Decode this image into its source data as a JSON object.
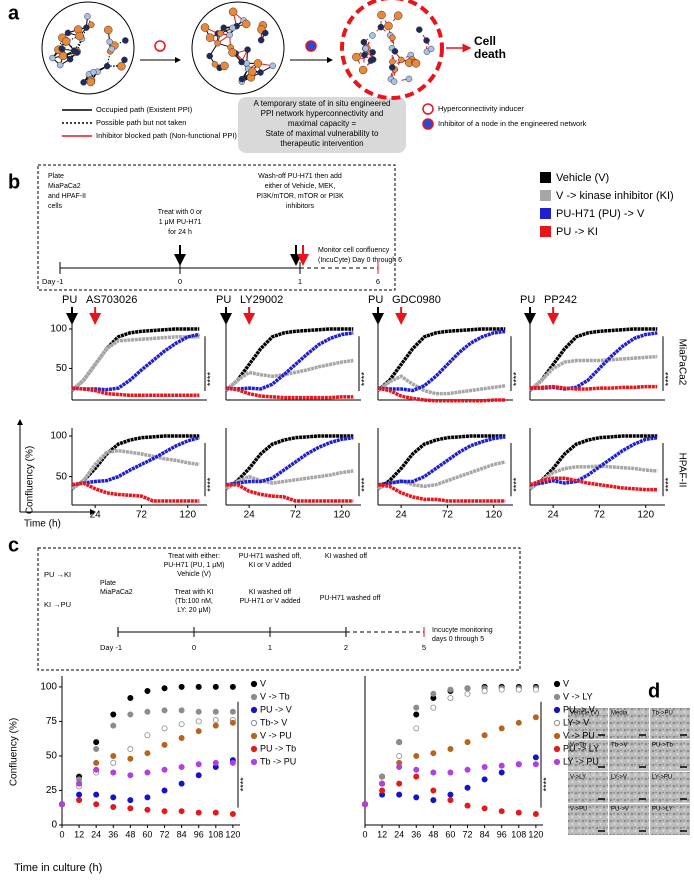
{
  "panel_labels": [
    "a",
    "b",
    "c",
    "d"
  ],
  "panel_a": {
    "legend": [
      "Occupied path (Existent PPI)",
      "Possible path but not taken",
      "Inhibitor blocked path (Non-functional PPI)"
    ],
    "box_text": [
      "A temporary state of in situ engineered",
      "PPI network hyperconnectivity  and",
      "maximal  capacity  =",
      "State of maximal vulnerability to",
      "therapeutic intervention"
    ],
    "cell_death": [
      "Cell",
      "death"
    ],
    "markers": [
      "Hyperconnectivity inducer",
      "Inhibitor of a node in the engineered network"
    ]
  },
  "panel_b": {
    "timeline": {
      "day_label": "Day",
      "days": [
        "-1",
        "0",
        "1",
        "6"
      ],
      "steps": [
        [
          "Plate",
          "MiaPaCa2",
          "and HPAF-II",
          "cells"
        ],
        [
          "Treat with 0 or",
          "1 μM PU-H71",
          "for 24 h"
        ],
        [
          "Wash-off PU-H71 then add",
          "either of Vehicle, MEK,",
          "PI3K/mTOR, mTOR or PI3K",
          "inhibitors"
        ],
        [
          "Monitor cell confluency",
          "(IncuCyte) Day 0 through 6"
        ]
      ]
    },
    "legend": [
      {
        "name": "Vehicle (V)",
        "color": "#000000"
      },
      {
        "name": "V -> kinase inhibitor (KI)",
        "color": "#a6a6a6"
      },
      {
        "name": "PU-H71 (PU) -> V",
        "color": "#1f1fd0"
      },
      {
        "name": "PU -> KI",
        "color": "#e8141b"
      }
    ],
    "row_labels": [
      "MiaPaCa2",
      "HPAF-II"
    ],
    "arrow_label": "PU",
    "y_axis_label": "Confluency (%)",
    "x_axis_label": "Time (h)"
  },
  "panel_c": {
    "timeline": {
      "day_label": "Day -1",
      "days": [
        "0",
        "1",
        "2",
        "5"
      ],
      "arms": [
        "PU →KI",
        "KI →PU"
      ],
      "steps": [
        [
          "Plate",
          "MiaPaCa2"
        ],
        [
          "Treat with either:",
          "PU-H71 (PU, 1 μM)",
          "Vehicle (V)"
        ],
        [
          "Treat with KI",
          "(Tb:100 nM,",
          "LY: 20 μM)"
        ],
        [
          "PU-H71 washed off,",
          "KI or V added"
        ],
        [
          "KI washed off",
          "PU-H71 or V added"
        ],
        [
          "KI washed off"
        ],
        [
          "PU-H71 washed off"
        ],
        [
          "Incucyte monitoring",
          "days 0 through 5"
        ]
      ]
    },
    "y_axis_label": "Confluency (%)",
    "x_axis_label": "Time in culture (h)"
  },
  "panel_d": {
    "labels": [
      "Vehicle (V)",
      "Media",
      "Tb->PU",
      "V->Tb",
      "Tb->V",
      "PU->Tb",
      "V->LY",
      "LY->V",
      "LY->PU",
      "V->PU",
      "PU->V",
      "PU->LY"
    ]
  },
  "chart_data": [
    {
      "type": "line",
      "title": "AS703026",
      "annotation": "****",
      "x": [
        0,
        12,
        24,
        36,
        48,
        60,
        72,
        84,
        96,
        108,
        120,
        132
      ],
      "xlim": [
        0,
        140
      ],
      "ylim": [
        10,
        105
      ],
      "yticks": [
        50,
        100
      ],
      "series": [
        {
          "values": [
            22,
            35,
            55,
            75,
            90,
            95,
            97,
            98,
            99,
            100,
            100,
            100
          ]
        },
        {
          "values": [
            22,
            35,
            55,
            75,
            85,
            86,
            87,
            88,
            89,
            90,
            90,
            90
          ]
        },
        {
          "values": [
            25,
            24,
            24,
            23,
            25,
            35,
            48,
            60,
            72,
            82,
            90,
            93
          ]
        },
        {
          "values": [
            25,
            24,
            22,
            18,
            17,
            16,
            16,
            16,
            16,
            16,
            16,
            16
          ]
        }
      ]
    },
    {
      "type": "line",
      "title": "LY29002",
      "annotation": "****",
      "x": [
        0,
        12,
        24,
        36,
        48,
        60,
        72,
        84,
        96,
        108,
        120,
        132
      ],
      "xlim": [
        0,
        140
      ],
      "ylim": [
        10,
        105
      ],
      "series": [
        {
          "values": [
            22,
            35,
            55,
            75,
            90,
            95,
            97,
            98,
            99,
            100,
            100,
            100
          ]
        },
        {
          "values": [
            22,
            35,
            45,
            42,
            40,
            42,
            45,
            48,
            52,
            55,
            58,
            60
          ]
        },
        {
          "values": [
            25,
            24,
            25,
            24,
            30,
            42,
            55,
            68,
            80,
            88,
            93,
            95
          ]
        },
        {
          "values": [
            25,
            23,
            18,
            15,
            14,
            13,
            13,
            13,
            13,
            13,
            14,
            14
          ]
        }
      ]
    },
    {
      "type": "line",
      "title": "GDC0980",
      "annotation": "****",
      "x": [
        0,
        12,
        24,
        36,
        48,
        60,
        72,
        84,
        96,
        108,
        120,
        132
      ],
      "xlim": [
        0,
        140
      ],
      "ylim": [
        10,
        105
      ],
      "series": [
        {
          "values": [
            22,
            35,
            55,
            75,
            90,
            95,
            97,
            98,
            99,
            100,
            100,
            100
          ]
        },
        {
          "values": [
            22,
            33,
            40,
            30,
            22,
            18,
            18,
            20,
            22,
            24,
            26,
            28
          ]
        },
        {
          "values": [
            25,
            24,
            24,
            22,
            28,
            40,
            55,
            70,
            82,
            90,
            95,
            97
          ]
        },
        {
          "values": [
            25,
            22,
            15,
            12,
            10,
            9,
            9,
            9,
            9,
            9,
            10,
            10
          ]
        }
      ]
    },
    {
      "type": "line",
      "title": "PP242",
      "annotation": "****",
      "x": [
        0,
        12,
        24,
        36,
        48,
        60,
        72,
        84,
        96,
        108,
        120,
        132
      ],
      "xlim": [
        0,
        140
      ],
      "ylim": [
        10,
        105
      ],
      "series": [
        {
          "values": [
            22,
            35,
            55,
            75,
            90,
            95,
            97,
            98,
            99,
            100,
            100,
            100
          ]
        },
        {
          "values": [
            22,
            35,
            50,
            58,
            60,
            60,
            60,
            61,
            62,
            63,
            64,
            65
          ]
        },
        {
          "values": [
            25,
            25,
            26,
            24,
            26,
            35,
            50,
            65,
            78,
            88,
            93,
            95
          ]
        },
        {
          "values": [
            25,
            26,
            27,
            25,
            24,
            24,
            25,
            25,
            26,
            26,
            27,
            27
          ]
        }
      ]
    },
    {
      "type": "line",
      "annotation": "****",
      "x": [
        0,
        12,
        24,
        36,
        48,
        60,
        72,
        84,
        96,
        108,
        120,
        132
      ],
      "xlim": [
        0,
        140
      ],
      "xticks": [
        24,
        72,
        120
      ],
      "ylim": [
        15,
        105
      ],
      "yticks": [
        50,
        100
      ],
      "series": [
        {
          "values": [
            35,
            45,
            60,
            78,
            90,
            95,
            98,
            99,
            100,
            100,
            100,
            100
          ]
        },
        {
          "values": [
            35,
            45,
            65,
            80,
            82,
            80,
            78,
            75,
            72,
            70,
            67,
            65
          ]
        },
        {
          "values": [
            40,
            42,
            44,
            45,
            50,
            58,
            65,
            72,
            80,
            88,
            94,
            98
          ]
        },
        {
          "values": [
            40,
            42,
            35,
            30,
            28,
            27,
            26,
            20,
            20,
            20,
            20,
            20
          ]
        }
      ]
    },
    {
      "type": "line",
      "annotation": "****",
      "x": [
        0,
        12,
        24,
        36,
        48,
        60,
        72,
        84,
        96,
        108,
        120,
        132
      ],
      "xlim": [
        0,
        140
      ],
      "xticks": [
        24,
        72,
        120
      ],
      "ylim": [
        15,
        105
      ],
      "series": [
        {
          "values": [
            35,
            45,
            60,
            78,
            90,
            95,
            98,
            99,
            100,
            100,
            100,
            100
          ]
        },
        {
          "values": [
            35,
            44,
            50,
            45,
            42,
            44,
            46,
            48,
            50,
            52,
            55,
            57
          ]
        },
        {
          "values": [
            40,
            42,
            44,
            44,
            48,
            58,
            68,
            78,
            86,
            92,
            96,
            98
          ]
        },
        {
          "values": [
            40,
            40,
            32,
            28,
            26,
            25,
            20,
            20,
            20,
            20,
            20,
            20
          ]
        }
      ]
    },
    {
      "type": "line",
      "annotation": "****",
      "x": [
        0,
        12,
        24,
        36,
        48,
        60,
        72,
        84,
        96,
        108,
        120,
        132
      ],
      "xlim": [
        0,
        140
      ],
      "xticks": [
        24,
        72,
        120
      ],
      "ylim": [
        15,
        105
      ],
      "series": [
        {
          "values": [
            35,
            45,
            60,
            78,
            90,
            95,
            98,
            99,
            100,
            100,
            100,
            100
          ]
        },
        {
          "values": [
            35,
            42,
            45,
            40,
            38,
            40,
            45,
            50,
            55,
            60,
            65,
            68
          ]
        },
        {
          "values": [
            40,
            42,
            44,
            44,
            50,
            60,
            70,
            80,
            88,
            93,
            97,
            99
          ]
        },
        {
          "values": [
            40,
            38,
            30,
            25,
            22,
            22,
            20,
            20,
            20,
            20,
            20,
            20
          ]
        }
      ]
    },
    {
      "type": "line",
      "annotation": "****",
      "x": [
        0,
        12,
        24,
        36,
        48,
        60,
        72,
        84,
        96,
        108,
        120,
        132
      ],
      "xlim": [
        0,
        140
      ],
      "xticks": [
        24,
        72,
        120
      ],
      "ylim": [
        15,
        105
      ],
      "series": [
        {
          "values": [
            35,
            45,
            60,
            78,
            90,
            95,
            98,
            99,
            100,
            100,
            100,
            100
          ]
        },
        {
          "values": [
            35,
            45,
            55,
            60,
            62,
            62,
            63,
            62,
            61,
            60,
            58,
            57
          ]
        },
        {
          "values": [
            40,
            42,
            45,
            42,
            44,
            52,
            62,
            72,
            82,
            90,
            96,
            98
          ]
        },
        {
          "values": [
            40,
            45,
            48,
            48,
            45,
            42,
            40,
            38,
            36,
            35,
            34,
            34
          ]
        }
      ]
    },
    {
      "type": "scatter",
      "annotation": "****",
      "x": [
        0,
        12,
        24,
        36,
        48,
        60,
        72,
        84,
        96,
        108,
        120
      ],
      "xlim": [
        0,
        125
      ],
      "xticks": [
        0,
        12,
        24,
        36,
        48,
        60,
        72,
        84,
        96,
        108,
        120
      ],
      "ylim": [
        0,
        105
      ],
      "yticks": [
        0,
        25,
        50,
        75,
        100
      ],
      "series": [
        {
          "name": "V",
          "color": "#000000",
          "values": [
            15,
            35,
            60,
            80,
            92,
            97,
            99,
            100,
            100,
            100,
            100
          ]
        },
        {
          "name": "V -> Tb",
          "color": "#8c8c8c",
          "values": [
            15,
            33,
            55,
            72,
            80,
            82,
            83,
            83,
            82,
            82,
            82
          ]
        },
        {
          "name": "PU -> V",
          "color": "#1515c8",
          "values": [
            15,
            22,
            22,
            20,
            18,
            20,
            25,
            30,
            36,
            42,
            47
          ]
        },
        {
          "name": "Tb-> V",
          "color": "#8c8c8c",
          "hollow": true,
          "values": [
            15,
            28,
            38,
            45,
            55,
            65,
            70,
            73,
            75,
            76,
            76
          ]
        },
        {
          "name": "V -> PU",
          "color": "#b5651d",
          "values": [
            15,
            30,
            45,
            50,
            48,
            52,
            58,
            63,
            68,
            72,
            74
          ]
        },
        {
          "name": "PU -> Tb",
          "color": "#e31a1c",
          "values": [
            15,
            18,
            15,
            13,
            12,
            11,
            10,
            10,
            9,
            9,
            8
          ]
        },
        {
          "name": "Tb -> PU",
          "color": "#b040e0",
          "values": [
            15,
            30,
            40,
            38,
            36,
            38,
            40,
            42,
            44,
            45,
            45
          ]
        }
      ]
    },
    {
      "type": "scatter",
      "annotation": "****",
      "x": [
        0,
        12,
        24,
        36,
        48,
        60,
        72,
        84,
        96,
        108,
        120
      ],
      "xlim": [
        0,
        125
      ],
      "xticks": [
        0,
        12,
        24,
        36,
        48,
        60,
        72,
        84,
        96,
        108,
        120
      ],
      "ylim": [
        0,
        105
      ],
      "series": [
        {
          "name": "V",
          "color": "#000000",
          "values": [
            15,
            35,
            60,
            80,
            92,
            97,
            99,
            100,
            100,
            100,
            100
          ]
        },
        {
          "name": "V -> LY",
          "color": "#8c8c8c",
          "values": [
            15,
            35,
            60,
            85,
            95,
            98,
            99,
            99,
            99,
            99,
            99
          ]
        },
        {
          "name": "PU -> V",
          "color": "#1515c8",
          "values": [
            15,
            22,
            22,
            20,
            18,
            22,
            27,
            33,
            38,
            44,
            49
          ]
        },
        {
          "name": "LY-> V",
          "color": "#8c8c8c",
          "hollow": true,
          "values": [
            15,
            30,
            50,
            70,
            85,
            92,
            95,
            97,
            98,
            98,
            98
          ]
        },
        {
          "name": "V -> PU",
          "color": "#b5651d",
          "values": [
            15,
            30,
            45,
            50,
            52,
            55,
            60,
            65,
            70,
            74,
            78
          ]
        },
        {
          "name": "PU -> LY",
          "color": "#e31a1c",
          "values": [
            15,
            25,
            30,
            35,
            25,
            18,
            14,
            12,
            10,
            9,
            8
          ]
        },
        {
          "name": "LY -> PU",
          "color": "#b040e0",
          "values": [
            15,
            30,
            42,
            40,
            38,
            38,
            40,
            42,
            43,
            44,
            44
          ]
        }
      ]
    }
  ]
}
